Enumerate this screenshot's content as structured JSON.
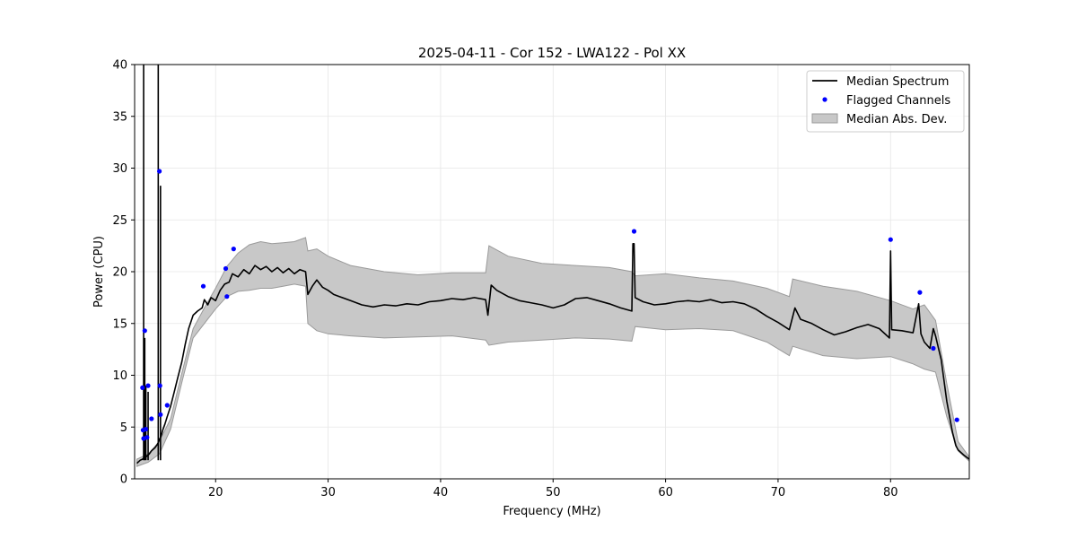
{
  "chart_data": {
    "type": "line",
    "title": "2025-04-11 - Cor 152 - LWA122 - Pol XX",
    "xlabel": "Frequency (MHz)",
    "ylabel": "Power (CPU)",
    "xlim": [
      12.8,
      87.0
    ],
    "ylim": [
      0,
      40
    ],
    "xticks": [
      20,
      30,
      40,
      50,
      60,
      70,
      80
    ],
    "yticks": [
      0,
      5,
      10,
      15,
      20,
      25,
      30,
      35,
      40
    ],
    "xtick_labels": [
      "20",
      "30",
      "40",
      "50",
      "60",
      "70",
      "80"
    ],
    "ytick_labels": [
      "0",
      "5",
      "10",
      "15",
      "20",
      "25",
      "30",
      "35",
      "40"
    ],
    "grid": true,
    "legend_position": "top-right",
    "legend": {
      "median": "Median Spectrum",
      "flagged": "Flagged Channels",
      "mad": "Median Abs. Dev."
    },
    "colors": {
      "median": "#000000",
      "flagged": "#0000ff",
      "mad_fill": "#c8c8c8",
      "mad_edge": "#9a9a9a",
      "grid": "#e6e6e6"
    },
    "series": [
      {
        "name": "Median Spectrum",
        "x": [
          13.0,
          13.3,
          13.5,
          13.6,
          13.7,
          13.8,
          13.9,
          14.1,
          14.3,
          14.6,
          14.8,
          14.9,
          15.0,
          15.1,
          15.2,
          15.3,
          15.5,
          15.7,
          16.0,
          16.3,
          16.6,
          17.0,
          17.3,
          17.6,
          18.0,
          18.4,
          18.8,
          19.0,
          19.3,
          19.6,
          20.0,
          20.4,
          20.8,
          21.2,
          21.5,
          22.0,
          22.5,
          23.0,
          23.5,
          24.0,
          24.5,
          25.0,
          25.5,
          26.0,
          26.5,
          27.0,
          27.5,
          28.0,
          28.2,
          28.6,
          29.0,
          29.5,
          30.0,
          30.5,
          31.0,
          32.0,
          33.0,
          34.0,
          35.0,
          36.0,
          37.0,
          38.0,
          39.0,
          40.0,
          41.0,
          42.0,
          43.0,
          44.0,
          44.2,
          44.5,
          45.0,
          46.0,
          47.0,
          48.0,
          49.0,
          50.0,
          51.0,
          52.0,
          53.0,
          54.0,
          55.0,
          56.0,
          57.0,
          57.1,
          57.2,
          57.3,
          58.0,
          59.0,
          60.0,
          61.0,
          62.0,
          63.0,
          64.0,
          65.0,
          66.0,
          67.0,
          68.0,
          69.0,
          70.0,
          71.0,
          71.5,
          72.0,
          73.0,
          74.0,
          75.0,
          76.0,
          77.0,
          78.0,
          79.0,
          79.9,
          80.0,
          80.1,
          81.0,
          82.0,
          82.5,
          82.7,
          83.0,
          83.5,
          83.8,
          84.0,
          84.5,
          85.0,
          85.5,
          85.8,
          86.0,
          86.5,
          87.0
        ],
        "y": [
          1.5,
          1.8,
          1.9,
          2.0,
          2.0,
          2.1,
          2.2,
          2.4,
          2.7,
          3.0,
          3.3,
          3.5,
          3.8,
          4.0,
          4.3,
          4.7,
          5.3,
          6.0,
          7.0,
          8.3,
          9.6,
          11.3,
          13.0,
          14.5,
          15.8,
          16.2,
          16.5,
          17.3,
          16.8,
          17.5,
          17.2,
          18.2,
          18.8,
          19.0,
          19.8,
          19.5,
          20.2,
          19.8,
          20.6,
          20.2,
          20.5,
          20.0,
          20.4,
          19.9,
          20.3,
          19.8,
          20.2,
          20.0,
          17.8,
          18.6,
          19.2,
          18.5,
          18.2,
          17.8,
          17.6,
          17.2,
          16.8,
          16.6,
          16.8,
          16.7,
          16.9,
          16.8,
          17.1,
          17.2,
          17.4,
          17.3,
          17.5,
          17.3,
          15.8,
          18.7,
          18.2,
          17.6,
          17.2,
          17.0,
          16.8,
          16.5,
          16.8,
          17.4,
          17.5,
          17.2,
          16.9,
          16.5,
          16.2,
          22.7,
          22.7,
          17.5,
          17.1,
          16.8,
          16.9,
          17.1,
          17.2,
          17.1,
          17.3,
          17.0,
          17.1,
          16.9,
          16.4,
          15.7,
          15.1,
          14.4,
          16.5,
          15.4,
          15.0,
          14.4,
          13.9,
          14.2,
          14.6,
          14.9,
          14.5,
          13.6,
          22.0,
          14.4,
          14.3,
          14.1,
          16.9,
          14.0,
          13.2,
          12.6,
          14.5,
          13.8,
          11.5,
          7.5,
          4.5,
          3.2,
          2.8,
          2.3,
          1.9
        ]
      },
      {
        "name": "Median Abs. Dev.",
        "x": [
          13.0,
          14.0,
          15.0,
          16.0,
          17.0,
          18.0,
          19.0,
          20.0,
          21.0,
          22.0,
          23.0,
          24.0,
          25.0,
          26.0,
          27.0,
          28.0,
          28.2,
          29.0,
          30.0,
          32.0,
          35.0,
          38.0,
          41.0,
          44.0,
          44.3,
          46.0,
          49.0,
          52.0,
          55.0,
          57.0,
          57.3,
          60.0,
          63.0,
          66.0,
          69.0,
          71.0,
          71.3,
          74.0,
          77.0,
          80.0,
          82.0,
          83.0,
          84.0,
          85.0,
          86.0,
          87.0
        ],
        "upper": [
          1.9,
          2.4,
          3.6,
          5.8,
          10.2,
          14.5,
          16.5,
          18.4,
          20.5,
          21.8,
          22.6,
          22.9,
          22.7,
          22.8,
          22.9,
          23.3,
          22.0,
          22.2,
          21.5,
          20.6,
          20.0,
          19.7,
          19.9,
          19.9,
          22.5,
          21.5,
          20.8,
          20.6,
          20.4,
          20.0,
          19.6,
          19.8,
          19.4,
          19.1,
          18.4,
          17.6,
          19.3,
          18.6,
          18.1,
          17.2,
          16.4,
          16.8,
          15.3,
          9.2,
          3.6,
          2.1
        ],
        "lower": [
          1.2,
          1.6,
          2.4,
          4.8,
          9.3,
          13.6,
          15.0,
          16.4,
          17.6,
          18.1,
          18.2,
          18.4,
          18.4,
          18.6,
          18.8,
          18.6,
          15.0,
          14.3,
          14.0,
          13.8,
          13.6,
          13.7,
          13.8,
          13.4,
          12.9,
          13.2,
          13.4,
          13.6,
          13.5,
          13.3,
          14.7,
          14.4,
          14.5,
          14.3,
          13.2,
          11.9,
          12.8,
          11.9,
          11.6,
          11.8,
          11.1,
          10.6,
          10.3,
          6.0,
          2.7,
          1.7
        ]
      },
      {
        "name": "Flagged Channels",
        "x": [
          13.5,
          13.55,
          13.6,
          13.7,
          13.8,
          13.9,
          14.0,
          14.3,
          15.0,
          15.05,
          15.1,
          15.7,
          18.9,
          20.9,
          21.0,
          21.6,
          57.2,
          80.0,
          82.6,
          83.8,
          85.9
        ],
        "y": [
          8.8,
          4.7,
          3.9,
          14.3,
          4.8,
          4.0,
          9.0,
          5.8,
          29.7,
          9.0,
          6.2,
          7.1,
          18.6,
          20.3,
          17.6,
          22.2,
          23.9,
          23.1,
          18.0,
          12.6,
          5.7
        ]
      }
    ],
    "spikes": [
      {
        "x": 13.6,
        "y": 40.0
      },
      {
        "x": 13.7,
        "y": 13.6
      },
      {
        "x": 13.8,
        "y": 9.0
      },
      {
        "x": 14.0,
        "y": 8.4
      },
      {
        "x": 14.9,
        "y": 40.0
      },
      {
        "x": 15.1,
        "y": 28.3
      }
    ]
  }
}
